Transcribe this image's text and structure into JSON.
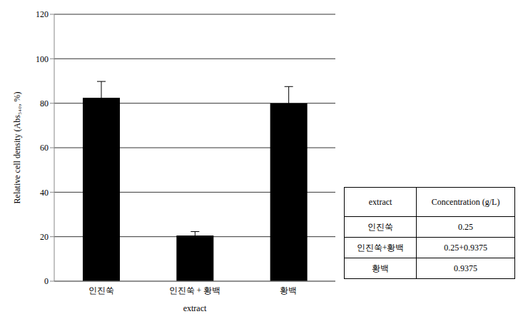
{
  "chart_data": {
    "type": "bar",
    "categories": [
      "인진쑥",
      "인진쑥 + 황백",
      "황백"
    ],
    "values": [
      82.5,
      20.5,
      80
    ],
    "errors": [
      7.3,
      1.8,
      7.5
    ],
    "color": "#000000",
    "ylim": [
      0,
      120
    ],
    "yticks": [
      0,
      20,
      40,
      60,
      80,
      100,
      120
    ],
    "grid": true,
    "y_label": "Relative cell density (Abs₅₄₀, %)",
    "x_label": "extract"
  },
  "table": {
    "header": [
      "extract",
      "Concentration (g/L)"
    ],
    "rows": [
      [
        "인진쑥",
        "0.25"
      ],
      [
        "인진쑥+황백",
        "0.25+0.9375"
      ],
      [
        "황백",
        "0.9375"
      ]
    ]
  }
}
